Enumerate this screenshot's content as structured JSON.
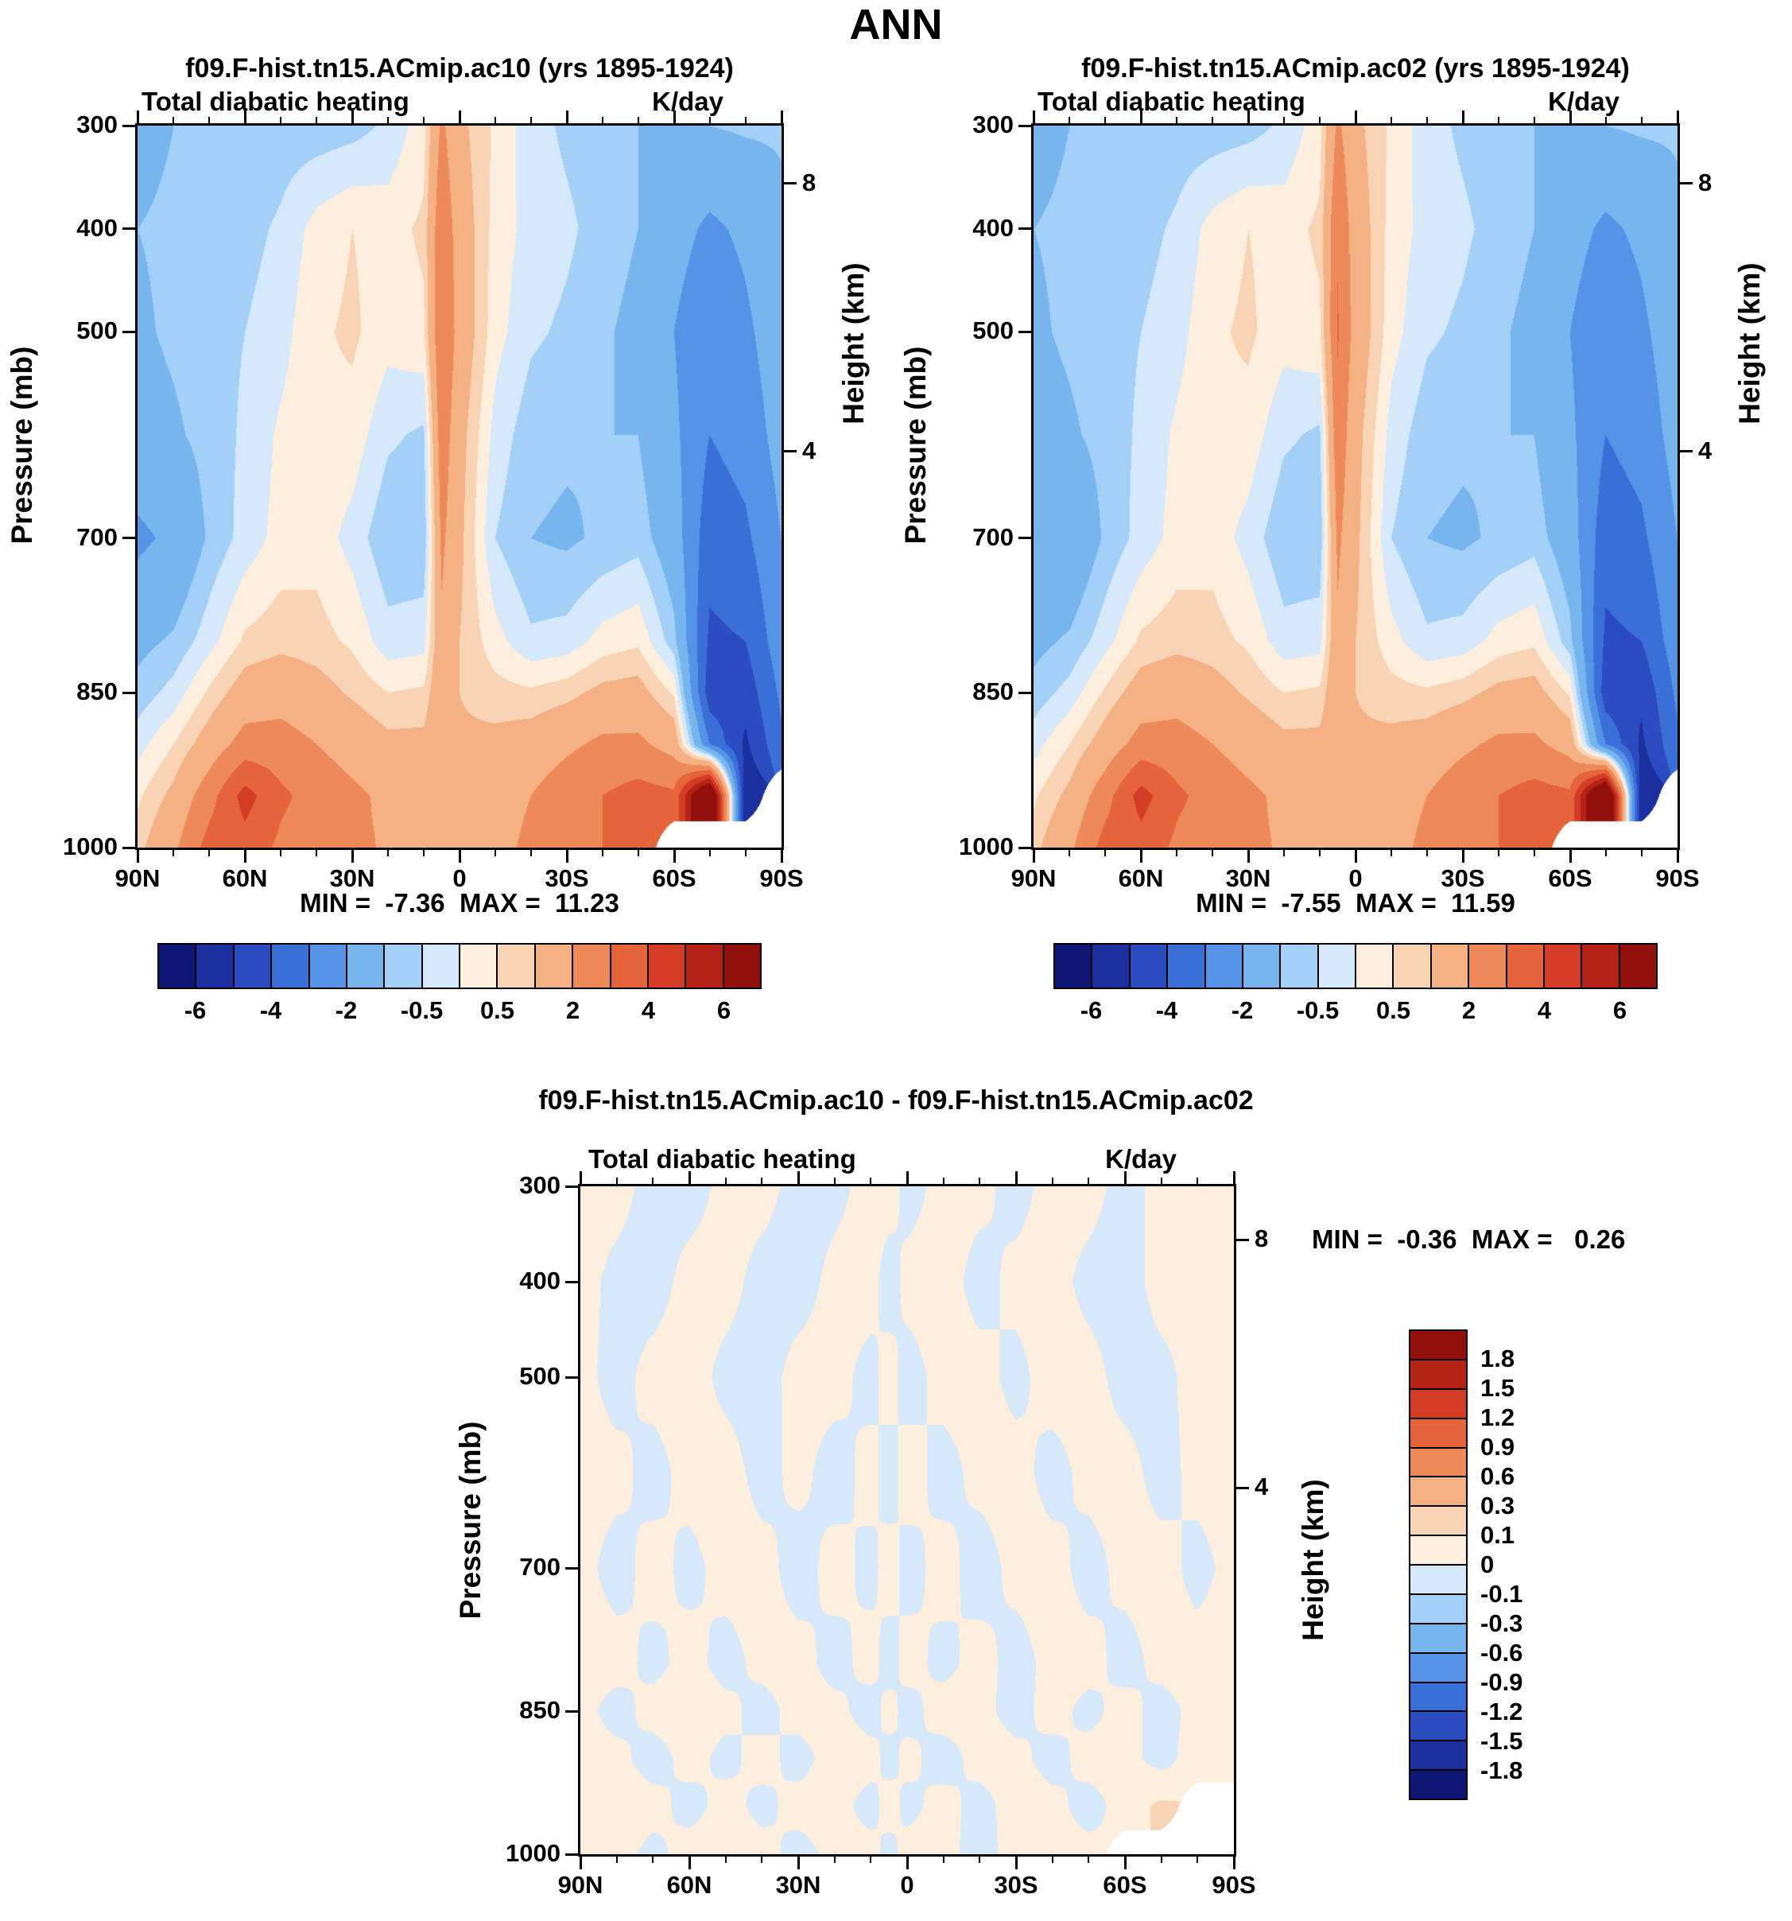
{
  "page_title": "ANN",
  "panels": [
    {
      "title": "f09.F-hist.tn15.ACmip.ac10 (yrs 1895-1924)",
      "subtitle_left": "Total diabatic heating",
      "subtitle_right": "K/day",
      "minmax": "MIN =  -7.36  MAX =  11.23"
    },
    {
      "title": "f09.F-hist.tn15.ACmip.ac02 (yrs 1895-1924)",
      "subtitle_left": "Total diabatic heating",
      "subtitle_right": "K/day",
      "minmax": "MIN =  -7.55  MAX =  11.59"
    }
  ],
  "diff": {
    "title": "f09.F-hist.tn15.ACmip.ac10 - f09.F-hist.tn15.ACmip.ac02",
    "subtitle_left": "Total diabatic heating",
    "subtitle_right": "K/day",
    "minmax": "MIN =  -0.36  MAX =   0.26"
  },
  "axes": {
    "pressure_label": "Pressure (mb)",
    "height_label": "Height (km)",
    "pressure_ticks": [
      {
        "label": "300",
        "p": 300
      },
      {
        "label": "400",
        "p": 400
      },
      {
        "label": "500",
        "p": 500
      },
      {
        "label": "700",
        "p": 700
      },
      {
        "label": "850",
        "p": 850
      },
      {
        "label": "1000",
        "p": 1000
      }
    ],
    "height_ticks": [
      {
        "label": "8",
        "p": 356
      },
      {
        "label": "4",
        "p": 616
      }
    ],
    "lat_ticks": [
      {
        "label": "90N",
        "lat": 90
      },
      {
        "label": "60N",
        "lat": 60
      },
      {
        "label": "30N",
        "lat": 30
      },
      {
        "label": "0",
        "lat": 0
      },
      {
        "label": "30S",
        "lat": -30
      },
      {
        "label": "60S",
        "lat": -60
      },
      {
        "label": "90S",
        "lat": -90
      }
    ]
  },
  "colorscale": {
    "palette": [
      "#0d1575",
      "#1b2f9e",
      "#2a4cc0",
      "#3a6fd8",
      "#5593e6",
      "#77b5ef",
      "#a3d0f7",
      "#d6e9fb",
      "#fdeedd",
      "#f9d4b4",
      "#f4b183",
      "#ee8a5a",
      "#e66439",
      "#d43d25",
      "#b52317",
      "#92100b"
    ],
    "masked": "#ffffff",
    "levels_main": [
      -6,
      -5,
      -4,
      -3,
      -2,
      -1,
      -0.5,
      0,
      0.5,
      1,
      2,
      3,
      4,
      5,
      6
    ],
    "levels_diff": [
      -1.8,
      -1.5,
      -1.2,
      -0.9,
      -0.6,
      -0.3,
      -0.1,
      0,
      0.1,
      0.3,
      0.6,
      0.9,
      1.2,
      1.5,
      1.8
    ]
  },
  "colorbar_main": {
    "labels": [
      {
        "text": "-6",
        "boundary": 1
      },
      {
        "text": "-4",
        "boundary": 3
      },
      {
        "text": "-2",
        "boundary": 5
      },
      {
        "text": "-0.5",
        "boundary": 7
      },
      {
        "text": "0.5",
        "boundary": 9
      },
      {
        "text": "2",
        "boundary": 11
      },
      {
        "text": "4",
        "boundary": 13
      },
      {
        "text": "6",
        "boundary": 15
      }
    ]
  },
  "colorbar_diff": {
    "labels": [
      "1.8",
      "1.5",
      "1.2",
      "0.9",
      "0.6",
      "0.3",
      "0.1",
      "0",
      "-0.1",
      "-0.3",
      "-0.6",
      "-0.9",
      "-1.2",
      "-1.5",
      "-1.8"
    ]
  },
  "chart_data": [
    {
      "type": "heatmap",
      "name": "ac10",
      "title": "f09.F-hist.tn15.ACmip.ac10 (yrs 1895-1924)",
      "variable": "Total diabatic heating",
      "units": "K/day",
      "min": -7.36,
      "max": 11.23,
      "lat": [
        90,
        80,
        70,
        60,
        50,
        40,
        30,
        20,
        10,
        5,
        0,
        -10,
        -20,
        -30,
        -40,
        -50,
        -60,
        -70,
        -80,
        -90
      ],
      "pressure": [
        300,
        400,
        500,
        600,
        700,
        800,
        850,
        900,
        950,
        1000
      ],
      "values": [
        [
          -1.2,
          -1.0,
          -1.0,
          -1.0,
          -0.8,
          -0.8,
          -0.7,
          -0.4,
          0.3,
          2.2,
          1.2,
          0.4,
          -0.3,
          -0.6,
          -0.8,
          -1.0,
          -1.2,
          -1.0,
          -0.9,
          -0.9
        ],
        [
          -1.0,
          -0.9,
          -0.8,
          -0.7,
          -0.4,
          0.2,
          0.5,
          0.3,
          0.6,
          2.8,
          1.5,
          0.3,
          -0.2,
          -0.4,
          -0.7,
          -1.0,
          -1.6,
          -2.2,
          -1.8,
          -1.2
        ],
        [
          -1.1,
          -0.9,
          -0.7,
          -0.5,
          -0.2,
          0.4,
          0.6,
          0.2,
          0.4,
          3.0,
          1.6,
          0.2,
          -0.4,
          -0.6,
          -0.9,
          -1.2,
          -2.0,
          -2.8,
          -2.2,
          -1.4
        ],
        [
          -1.3,
          -1.1,
          -0.8,
          -0.4,
          0.1,
          0.4,
          0.3,
          -0.4,
          -0.6,
          2.6,
          1.3,
          -0.2,
          -0.8,
          -0.9,
          -1.0,
          -1.0,
          -1.8,
          -3.0,
          -2.6,
          -1.6
        ],
        [
          -2.2,
          -1.8,
          -0.9,
          -0.3,
          0.2,
          0.3,
          -0.2,
          -0.9,
          -0.9,
          2.2,
          1.2,
          -0.5,
          -1.0,
          -1.1,
          -0.9,
          -0.7,
          -1.5,
          -3.6,
          -3.2,
          -2.0
        ],
        [
          -1.2,
          -0.9,
          -0.2,
          0.6,
          0.8,
          0.7,
          0.4,
          -0.3,
          -0.2,
          1.8,
          1.0,
          0.2,
          -0.4,
          -0.3,
          0.2,
          0.4,
          -0.8,
          -4.2,
          -4.0,
          -2.4
        ],
        [
          -0.8,
          -0.3,
          0.6,
          1.4,
          1.6,
          1.3,
          0.9,
          0.5,
          0.6,
          1.8,
          1.0,
          0.7,
          0.6,
          0.8,
          1.2,
          1.3,
          0.4,
          -4.6,
          -4.6,
          -2.8
        ],
        [
          -0.2,
          0.5,
          1.4,
          2.4,
          2.4,
          2.0,
          1.6,
          1.2,
          1.2,
          1.8,
          1.1,
          1.2,
          1.4,
          1.8,
          2.2,
          2.2,
          1.6,
          -3.0,
          -5.2,
          -3.2
        ],
        [
          0.4,
          1.2,
          2.6,
          4.4,
          3.2,
          2.6,
          2.2,
          1.8,
          1.5,
          1.8,
          1.2,
          1.6,
          2.0,
          2.6,
          3.0,
          3.4,
          3.2,
          9.0,
          -5.8,
          null
        ],
        [
          0.8,
          1.8,
          3.4,
          3.6,
          2.8,
          2.4,
          2.2,
          1.9,
          1.6,
          1.7,
          1.2,
          1.7,
          2.2,
          2.7,
          3.0,
          3.2,
          null,
          null,
          null,
          null
        ]
      ]
    },
    {
      "type": "heatmap",
      "name": "ac02",
      "title": "f09.F-hist.tn15.ACmip.ac02 (yrs 1895-1924)",
      "variable": "Total diabatic heating",
      "units": "K/day",
      "min": -7.55,
      "max": 11.59,
      "lat": [
        90,
        80,
        70,
        60,
        50,
        40,
        30,
        20,
        10,
        5,
        0,
        -10,
        -20,
        -30,
        -40,
        -50,
        -60,
        -70,
        -80,
        -90
      ],
      "pressure": [
        300,
        400,
        500,
        600,
        700,
        800,
        850,
        900,
        950,
        1000
      ],
      "values": [
        [
          -1.2,
          -1.0,
          -1.0,
          -1.0,
          -0.8,
          -0.8,
          -0.7,
          -0.4,
          0.3,
          2.2,
          1.2,
          0.4,
          -0.3,
          -0.6,
          -0.8,
          -1.0,
          -1.2,
          -1.0,
          -0.9,
          -0.9
        ],
        [
          -1.0,
          -0.9,
          -0.8,
          -0.7,
          -0.4,
          0.2,
          0.5,
          0.3,
          0.6,
          2.9,
          1.5,
          0.3,
          -0.2,
          -0.4,
          -0.7,
          -1.0,
          -1.6,
          -2.2,
          -1.8,
          -1.2
        ],
        [
          -1.1,
          -0.9,
          -0.7,
          -0.5,
          -0.2,
          0.4,
          0.6,
          0.2,
          0.4,
          3.1,
          1.6,
          0.2,
          -0.4,
          -0.6,
          -0.9,
          -1.2,
          -2.0,
          -2.8,
          -2.2,
          -1.4
        ],
        [
          -1.3,
          -1.1,
          -0.8,
          -0.4,
          0.1,
          0.4,
          0.3,
          -0.4,
          -0.6,
          2.7,
          1.3,
          -0.2,
          -0.8,
          -0.9,
          -1.0,
          -1.0,
          -1.8,
          -3.0,
          -2.6,
          -1.6
        ],
        [
          -2.0,
          -1.8,
          -0.9,
          -0.3,
          0.2,
          0.3,
          -0.2,
          -0.9,
          -0.9,
          2.2,
          1.2,
          -0.5,
          -1.0,
          -1.1,
          -0.9,
          -0.7,
          -1.5,
          -3.6,
          -3.2,
          -2.0
        ],
        [
          -1.2,
          -0.9,
          -0.2,
          0.6,
          0.8,
          0.7,
          0.4,
          -0.3,
          -0.2,
          1.8,
          1.0,
          0.2,
          -0.4,
          -0.3,
          0.2,
          0.4,
          -0.8,
          -4.2,
          -4.0,
          -2.4
        ],
        [
          -0.8,
          -0.3,
          0.6,
          1.4,
          1.6,
          1.3,
          0.9,
          0.5,
          0.6,
          1.8,
          1.0,
          0.7,
          0.6,
          0.8,
          1.2,
          1.3,
          0.4,
          -4.6,
          -4.8,
          -2.8
        ],
        [
          -0.2,
          0.5,
          1.4,
          2.4,
          2.4,
          2.0,
          1.6,
          1.2,
          1.2,
          1.8,
          1.1,
          1.2,
          1.4,
          1.8,
          2.2,
          2.2,
          1.6,
          -3.0,
          -5.2,
          -3.2
        ],
        [
          0.4,
          1.2,
          2.6,
          4.4,
          3.2,
          2.6,
          2.2,
          1.8,
          1.5,
          1.8,
          1.2,
          1.6,
          2.0,
          2.6,
          3.0,
          3.4,
          3.2,
          9.4,
          -5.8,
          null
        ],
        [
          0.8,
          1.8,
          3.4,
          3.6,
          2.8,
          2.4,
          2.2,
          1.9,
          1.6,
          1.7,
          1.2,
          1.7,
          2.2,
          2.7,
          3.0,
          3.2,
          null,
          null,
          null,
          null
        ]
      ]
    },
    {
      "type": "heatmap",
      "name": "diff",
      "title": "f09.F-hist.tn15.ACmip.ac10 - f09.F-hist.tn15.ACmip.ac02",
      "variable": "Total diabatic heating",
      "units": "K/day",
      "min": -0.36,
      "max": 0.26,
      "lat": [
        90,
        80,
        70,
        60,
        50,
        40,
        30,
        20,
        10,
        5,
        0,
        -10,
        -20,
        -30,
        -40,
        -50,
        -60,
        -70,
        -80,
        -90
      ],
      "pressure": [
        300,
        400,
        500,
        600,
        700,
        800,
        850,
        900,
        950,
        1000
      ],
      "values": [
        [
          0.05,
          0.05,
          -0.05,
          -0.06,
          0.04,
          0.05,
          -0.05,
          -0.04,
          0.05,
          0.08,
          -0.06,
          0.05,
          0.04,
          -0.05,
          0.05,
          0.05,
          -0.05,
          0.04,
          0.05,
          0.05
        ],
        [
          0.05,
          -0.04,
          -0.06,
          0.05,
          0.05,
          -0.05,
          -0.06,
          0.04,
          0.06,
          -0.08,
          0.05,
          0.06,
          -0.05,
          0.04,
          0.05,
          -0.04,
          -0.06,
          0.05,
          0.04,
          0.04
        ],
        [
          0.04,
          -0.05,
          0.05,
          0.06,
          -0.04,
          -0.06,
          0.05,
          0.05,
          -0.05,
          0.07,
          -0.06,
          0.05,
          0.05,
          -0.04,
          0.06,
          0.05,
          -0.05,
          -0.04,
          0.05,
          0.04
        ],
        [
          0.05,
          0.04,
          -0.05,
          0.05,
          0.06,
          -0.05,
          0.04,
          -0.06,
          0.05,
          -0.07,
          0.06,
          -0.05,
          0.04,
          0.05,
          -0.05,
          0.04,
          0.05,
          -0.05,
          0.04,
          0.05
        ],
        [
          0.04,
          -0.05,
          0.05,
          -0.04,
          0.05,
          0.05,
          -0.06,
          0.05,
          -0.04,
          0.06,
          -0.05,
          0.05,
          -0.06,
          0.04,
          0.05,
          -0.05,
          0.04,
          0.05,
          -0.04,
          0.04
        ],
        [
          0.05,
          0.05,
          -0.04,
          0.05,
          -0.05,
          0.04,
          0.05,
          -0.05,
          0.05,
          -0.06,
          0.05,
          -0.04,
          0.05,
          -0.05,
          0.04,
          0.05,
          -0.05,
          0.04,
          0.05,
          0.04
        ],
        [
          0.04,
          -0.05,
          0.05,
          0.06,
          0.04,
          -0.05,
          0.05,
          0.04,
          -0.06,
          0.05,
          -0.05,
          0.06,
          0.04,
          -0.05,
          0.05,
          -0.04,
          0.05,
          -0.05,
          0.04,
          0.05
        ],
        [
          0.05,
          0.04,
          -0.06,
          0.05,
          -0.04,
          0.05,
          -0.05,
          0.06,
          0.05,
          -0.05,
          0.04,
          -0.06,
          0.05,
          0.04,
          -0.05,
          0.05,
          0.04,
          -0.04,
          0.05,
          0.04
        ],
        [
          0.04,
          0.06,
          0.05,
          -0.05,
          0.05,
          -0.04,
          0.05,
          0.05,
          -0.05,
          0.06,
          -0.04,
          0.05,
          -0.05,
          0.06,
          0.04,
          -0.05,
          0.05,
          0.12,
          null,
          null
        ],
        [
          0.05,
          0.05,
          -0.04,
          0.06,
          0.05,
          0.05,
          -0.05,
          0.04,
          0.05,
          -0.05,
          0.05,
          0.04,
          -0.05,
          0.05,
          0.05,
          0.04,
          null,
          null,
          null,
          null
        ]
      ]
    }
  ]
}
